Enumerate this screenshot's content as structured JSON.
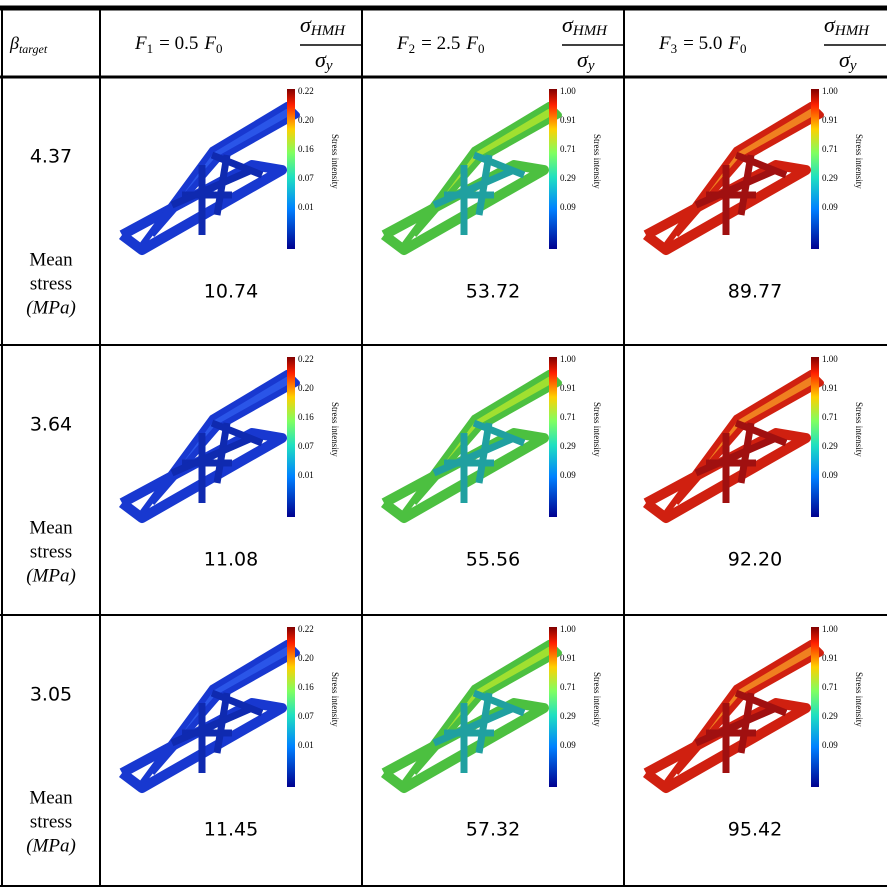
{
  "header": {
    "row_label": {
      "symbol": "β",
      "subscript": "target"
    },
    "columns": [
      {
        "force": "F",
        "force_sub": "1",
        "relation": "= 0.5",
        "base": "F",
        "base_sub": "0",
        "ratio": {
          "num": "σ",
          "num_sub": "HMH",
          "den": "σ",
          "den_sub": "y"
        }
      },
      {
        "force": "F",
        "force_sub": "2",
        "relation": "= 2.5",
        "base": "F",
        "base_sub": "0",
        "ratio": {
          "num": "σ",
          "num_sub": "HMH",
          "den": "σ",
          "den_sub": "y"
        }
      },
      {
        "force": "F",
        "force_sub": "3",
        "relation": "= 5.0",
        "base": "F",
        "base_sub": "0",
        "ratio": {
          "num": "σ",
          "num_sub": "HMH",
          "den": "σ",
          "den_sub": "y"
        }
      }
    ]
  },
  "rows": [
    {
      "beta": "4.37",
      "mean_label": [
        "Mean",
        "stress",
        "(MPa)"
      ],
      "panels": [
        {
          "mean": "10.74",
          "colorbar_label": "Stress intensity",
          "colorbar_ticks": [
            "0.22",
            "0.20",
            "0.16",
            "0.07",
            "0.01"
          ]
        },
        {
          "mean": "53.72",
          "colorbar_label": "Stress intensity",
          "colorbar_ticks": [
            "1.00",
            "0.91",
            "0.71",
            "0.29",
            "0.09"
          ]
        },
        {
          "mean": "89.77",
          "colorbar_label": "Stress intensity",
          "colorbar_ticks": [
            "1.00",
            "0.91",
            "0.71",
            "0.29",
            "0.09"
          ]
        }
      ]
    },
    {
      "beta": "3.64",
      "mean_label": [
        "Mean",
        "stress",
        "(MPa)"
      ],
      "panels": [
        {
          "mean": "11.08",
          "colorbar_label": "Stress intensity",
          "colorbar_ticks": [
            "0.22",
            "0.20",
            "0.16",
            "0.07",
            "0.01"
          ]
        },
        {
          "mean": "55.56",
          "colorbar_label": "Stress intensity",
          "colorbar_ticks": [
            "1.00",
            "0.91",
            "0.71",
            "0.29",
            "0.09"
          ]
        },
        {
          "mean": "92.20",
          "colorbar_label": "Stress intensity",
          "colorbar_ticks": [
            "1.00",
            "0.91",
            "0.71",
            "0.29",
            "0.09"
          ]
        }
      ]
    },
    {
      "beta": "3.05",
      "mean_label": [
        "Mean",
        "stress",
        "(MPa)"
      ],
      "panels": [
        {
          "mean": "11.45",
          "colorbar_label": "Stress intensity",
          "colorbar_ticks": [
            "0.22",
            "0.20",
            "0.16",
            "0.07",
            "0.01"
          ]
        },
        {
          "mean": "57.32",
          "colorbar_label": "Stress intensity",
          "colorbar_ticks": [
            "1.00",
            "0.91",
            "0.71",
            "0.29",
            "0.09"
          ]
        },
        {
          "mean": "95.42",
          "colorbar_label": "Stress intensity",
          "colorbar_ticks": [
            "1.00",
            "0.91",
            "0.71",
            "0.29",
            "0.09"
          ]
        }
      ]
    }
  ]
}
